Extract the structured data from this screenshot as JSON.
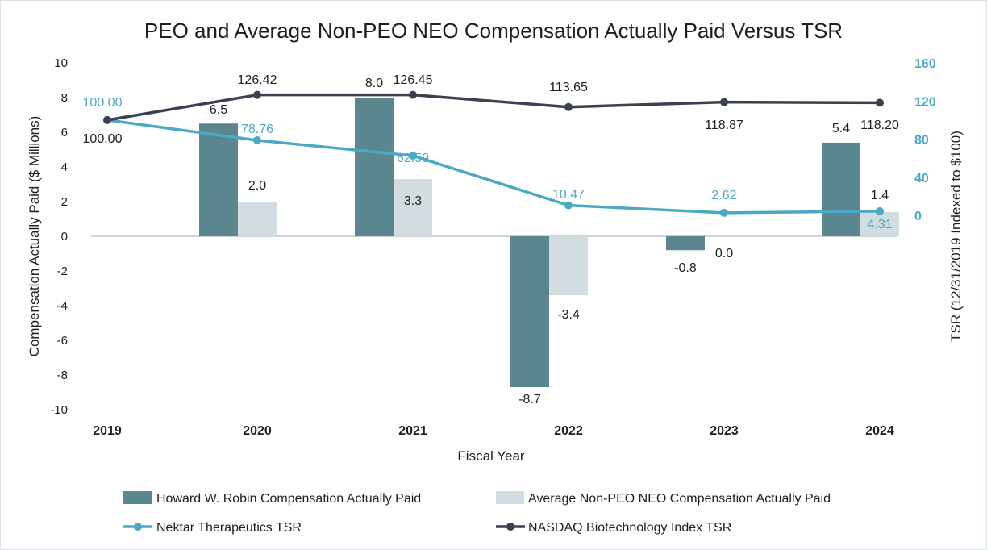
{
  "chart_data": {
    "type": "bar",
    "title": "PEO and Average Non-PEO NEO Compensation Actually Paid Versus TSR",
    "xlabel": "Fiscal Year",
    "ylabel": "Compensation Actually Paid ($ Millions)",
    "ylabel_right": "TSR (12/31/2019 Indexed to $100)",
    "categories": [
      "2019",
      "2020",
      "2021",
      "2022",
      "2023",
      "2024"
    ],
    "ylim": [
      -10,
      10
    ],
    "yticks": [
      10,
      8,
      6,
      4,
      2,
      0,
      -2,
      -4,
      -6,
      -8,
      -10
    ],
    "ytick_labels": [
      "10",
      "8",
      "6",
      "4",
      "2",
      "0",
      "-2",
      "-4",
      "-6",
      "-8",
      "-10"
    ],
    "ylim_right": [
      -80,
      160
    ],
    "yticks_right": [
      160,
      120,
      80,
      40,
      0
    ],
    "ytick_labels_right": [
      "160",
      "120",
      "80",
      "40",
      "0"
    ],
    "grid": false,
    "legend_position": "bottom",
    "series": [
      {
        "name": "Howard W. Robin Compensation Actually Paid",
        "type": "bar",
        "axis": "left",
        "color": "#5a878f",
        "values": [
          null,
          6.5,
          8.0,
          -8.7,
          -0.8,
          5.4
        ],
        "labels": [
          "",
          "6.5",
          "8.0",
          "-8.7",
          "-0.8",
          "5.4"
        ]
      },
      {
        "name": "Average Non-PEO NEO Compensation Actually Paid",
        "type": "bar",
        "axis": "left",
        "color": "#d2dde2",
        "values": [
          null,
          2.0,
          3.3,
          -3.4,
          0.0,
          1.4
        ],
        "labels": [
          "",
          "2.0",
          "3.3",
          "-3.4",
          "0.0",
          "1.4"
        ]
      },
      {
        "name": "Nektar Therapeutics TSR",
        "type": "line",
        "axis": "right",
        "color": "#4ba9c3",
        "values": [
          100.0,
          78.76,
          62.59,
          10.47,
          2.62,
          4.31
        ],
        "labels": [
          "100.00",
          "78.76",
          "62.59",
          "10.47",
          "2.62",
          "4.31"
        ]
      },
      {
        "name": "NASDAQ Biotechnology Index TSR",
        "type": "line",
        "axis": "right",
        "color": "#3a4250",
        "values": [
          100.0,
          126.42,
          126.45,
          113.65,
          118.87,
          118.2
        ],
        "labels": [
          "100.00",
          "126.42",
          "126.45",
          "113.65",
          "118.87",
          "118.20"
        ]
      }
    ],
    "colors": {
      "right_axis_text": "#4ba9c3",
      "zero_line": "#bfc7ca"
    }
  }
}
